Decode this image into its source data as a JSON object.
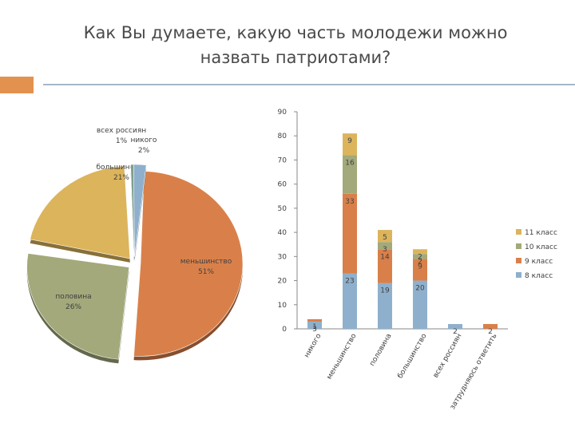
{
  "title_line1": "Как Вы думаете, какую часть молодежи можно",
  "title_line2": "назвать патриотами?",
  "colors": {
    "accent": "#e3914e",
    "rule": "#a9b7c6"
  },
  "chart_data": [
    {
      "type": "pie",
      "slices": [
        {
          "label": "меньшинство",
          "percent": "51%",
          "value": 51,
          "color": "#d9804a"
        },
        {
          "label": "половина",
          "percent": "26%",
          "value": 26,
          "color": "#a3a97a"
        },
        {
          "label": "большинство",
          "percent": "21%",
          "value": 21,
          "color": "#dcb45c"
        },
        {
          "label": "всех россиян",
          "percent": "1%",
          "value": 1,
          "color": "#7fa08c"
        },
        {
          "label": "никого",
          "percent": "2%",
          "value": 2,
          "color": "#8fb0cc"
        }
      ]
    },
    {
      "type": "bar",
      "stacked": true,
      "categories": [
        "никого",
        "меньшинство",
        "половина",
        "большинство",
        "всех россиян",
        "затрудняюсь ответить"
      ],
      "series": [
        {
          "name": "8 класс",
          "color": "#8fb0cc",
          "values": [
            3,
            23,
            19,
            20,
            2,
            0
          ],
          "labels": [
            "3",
            "23",
            "19",
            "20",
            "2",
            ""
          ]
        },
        {
          "name": "9 класс",
          "color": "#d9804a",
          "values": [
            1,
            33,
            14,
            9,
            0,
            2
          ],
          "labels": [
            "1",
            "33",
            "14",
            "9",
            "",
            "2"
          ]
        },
        {
          "name": "10 класс",
          "color": "#a3a97a",
          "values": [
            0,
            16,
            3,
            2,
            0,
            0
          ],
          "labels": [
            "",
            "16",
            "3",
            "2",
            "",
            ""
          ]
        },
        {
          "name": "11 класс",
          "color": "#dcb45c",
          "values": [
            0,
            9,
            5,
            2,
            0,
            0
          ],
          "labels": [
            "",
            "9",
            "5",
            "2",
            "",
            ""
          ]
        }
      ],
      "yticks": [
        "0",
        "10",
        "20",
        "30",
        "40",
        "50",
        "60",
        "70",
        "80",
        "90"
      ],
      "ylim": [
        0,
        90
      ],
      "legend": "right"
    }
  ]
}
